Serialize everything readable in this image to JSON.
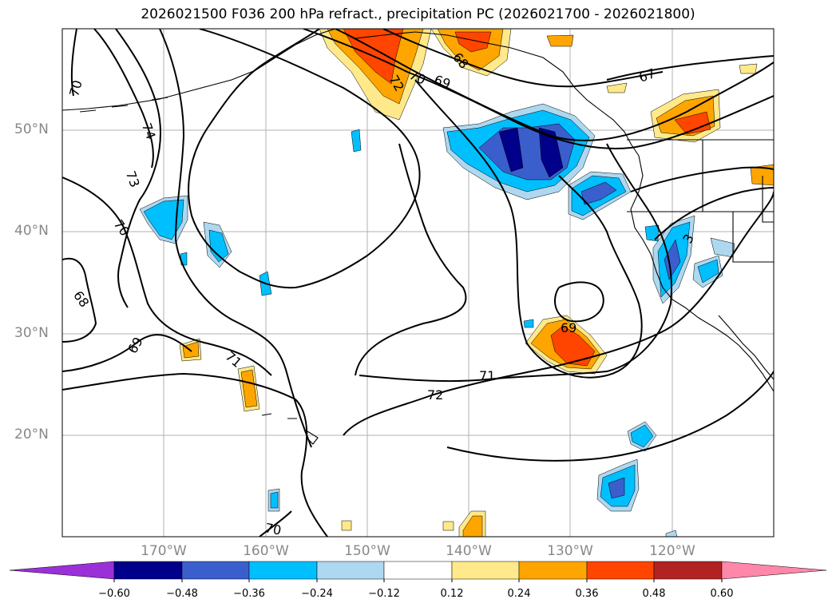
{
  "title": "2026021500 F036 200 hPa refract., precipitation PC (2026021700 - 2026021800)",
  "lat_labels": [
    "50°N",
    "40°N",
    "30°N",
    "20°N"
  ],
  "lon_labels": [
    "170°W",
    "160°W",
    "150°W",
    "140°W",
    "130°W",
    "120°W"
  ],
  "contour_labels": [
    "70",
    "74",
    "73",
    "70",
    "68",
    "69",
    "71",
    "72",
    "71",
    "69",
    "70",
    "69",
    "68",
    "72",
    "67",
    "70",
    "3"
  ],
  "colorbar": {
    "ticks": [
      "−0.60",
      "−0.48",
      "−0.36",
      "−0.24",
      "−0.12",
      "0.12",
      "0.24",
      "0.36",
      "0.48",
      "0.60"
    ],
    "colors": [
      "#9b30d9",
      "#00008b",
      "#3a5fcd",
      "#00bfff",
      "#add8f0",
      "#ffffff",
      "#ffe98a",
      "#ffa500",
      "#ff4500",
      "#b22222",
      "#ff88aa"
    ]
  },
  "colors": {
    "grid": "#b0b0b0",
    "coast": "#000000",
    "contour": "#000000"
  }
}
